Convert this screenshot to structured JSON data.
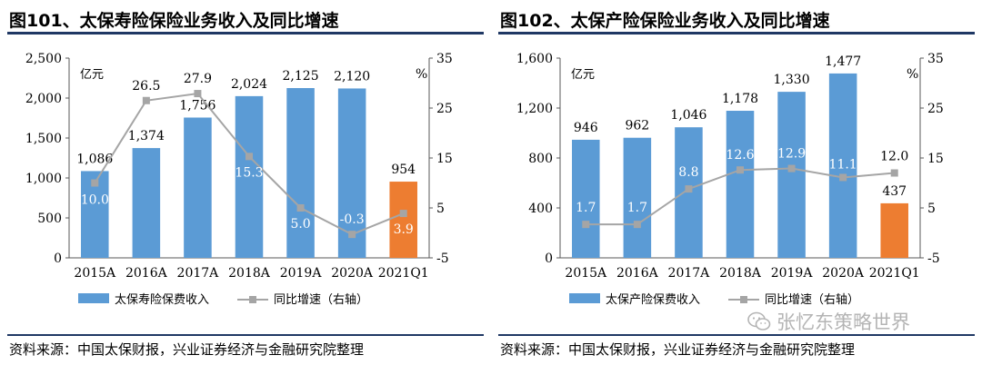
{
  "panels": [
    {
      "title": "图101、太保寿险保险业务收入及同比增速",
      "source": "资料来源：中国太保财报，兴业证券经济与金融研究院整理"
    },
    {
      "title": "图102、太保产险保险业务收入及同比增速",
      "source": "资料来源：中国太保财报，兴业证券经济与金融研究院整理"
    }
  ],
  "watermark": "张忆东策略世界",
  "colors": {
    "bar": "#5b9bd5",
    "bar_highlight": "#ed7d31",
    "line": "#a5a5a5",
    "rule": "#1f3864"
  },
  "chart_data": [
    {
      "type": "bar",
      "categories": [
        "2015A",
        "2016A",
        "2017A",
        "2018A",
        "2019A",
        "2020A",
        "2021Q1"
      ],
      "series": [
        {
          "name": "太保寿险保费收入",
          "kind": "bar",
          "axis": "left",
          "values": [
            1086,
            1374,
            1756,
            2024,
            2125,
            2120,
            954
          ],
          "labels": [
            "1,086",
            "1,374",
            "1,756",
            "2,024",
            "2,125",
            "2,120",
            "954"
          ]
        },
        {
          "name": "同比增速（右轴）",
          "kind": "line",
          "axis": "right",
          "values": [
            10.0,
            26.5,
            27.9,
            15.3,
            5.0,
            -0.3,
            3.9
          ],
          "labels": [
            "10.0",
            "26.5",
            "27.9",
            "15.3",
            "5.0",
            "-0.3",
            "3.9"
          ]
        }
      ],
      "left_unit": "亿元",
      "right_unit": "%",
      "ylim": [
        0,
        2500
      ],
      "y_ticks": [
        0,
        500,
        1000,
        1500,
        2000,
        2500
      ],
      "y_tick_labels": [
        "0",
        "500",
        "1,000",
        "1,500",
        "2,000",
        "2,500"
      ],
      "y2lim": [
        -5,
        35
      ],
      "y2_ticks": [
        -5,
        5,
        15,
        25,
        35
      ],
      "y2_tick_labels": [
        "-5",
        "5",
        "15",
        "25",
        "35"
      ],
      "highlight_index": 6,
      "legend": "bottom",
      "grid": false
    },
    {
      "type": "bar",
      "categories": [
        "2015A",
        "2016A",
        "2017A",
        "2018A",
        "2019A",
        "2020A",
        "2021Q1"
      ],
      "series": [
        {
          "name": "太保产险保费收入",
          "kind": "bar",
          "axis": "left",
          "values": [
            946,
            962,
            1046,
            1178,
            1330,
            1477,
            437
          ],
          "labels": [
            "946",
            "962",
            "1,046",
            "1,178",
            "1,330",
            "1,477",
            "437"
          ]
        },
        {
          "name": "同比增速（右轴）",
          "kind": "line",
          "axis": "right",
          "values": [
            1.7,
            1.7,
            8.8,
            12.6,
            12.9,
            11.1,
            12.0
          ],
          "labels": [
            "1.7",
            "1.7",
            "8.8",
            "12.6",
            "12.9",
            "11.1",
            "12.0"
          ]
        }
      ],
      "left_unit": "亿元",
      "right_unit": "%",
      "ylim": [
        0,
        1600
      ],
      "y_ticks": [
        0,
        400,
        800,
        1200,
        1600
      ],
      "y_tick_labels": [
        "0",
        "400",
        "800",
        "1,200",
        "1,600"
      ],
      "y2lim": [
        -5,
        35
      ],
      "y2_ticks": [
        -5,
        5,
        15,
        25,
        35
      ],
      "y2_tick_labels": [
        "-5",
        "5",
        "15",
        "25",
        "35"
      ],
      "highlight_index": 6,
      "legend": "bottom",
      "grid": false
    }
  ]
}
